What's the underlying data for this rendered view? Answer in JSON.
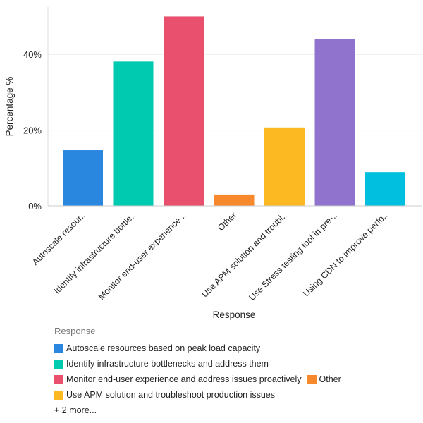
{
  "chart_data": {
    "type": "bar",
    "xlabel": "Response",
    "ylabel": "Percentage %",
    "ylim": [
      0,
      52.5
    ],
    "yticks": [
      0,
      20,
      40
    ],
    "ytick_labels": [
      "0%",
      "20%",
      "40%"
    ],
    "grid": true,
    "categories": [
      "Autoscale resour..",
      "Identify infrastructure bottle..",
      "Monitor end-user experience ..",
      "Other",
      "Use APM solution and troubl..",
      "Use Stress testing tool in pre-..",
      "Using CDN to improve perfo.."
    ],
    "values": [
      14.7,
      38.1,
      50.0,
      3.0,
      20.7,
      44.1,
      8.9
    ],
    "colors": [
      "#2a87e0",
      "#00cbb1",
      "#e8506e",
      "#f7882c",
      "#fdb921",
      "#9073cc",
      "#00bfdf"
    ],
    "legend": {
      "title": "Response",
      "placement": "bottom",
      "rows": [
        [
          {
            "label": "Autoscale resources based on peak load capacity",
            "color": "#2a87e0"
          }
        ],
        [
          {
            "label": "Identify infrastructure bottlenecks and address them",
            "color": "#00cbb1"
          }
        ],
        [
          {
            "label": "Monitor end-user experience and address issues proactively",
            "color": "#e8506e"
          },
          {
            "label": "Other",
            "color": "#f7882c"
          }
        ],
        [
          {
            "label": "Use APM solution and troubleshoot production issues",
            "color": "#fdb921"
          }
        ]
      ],
      "more": "+ 2 more..."
    }
  }
}
